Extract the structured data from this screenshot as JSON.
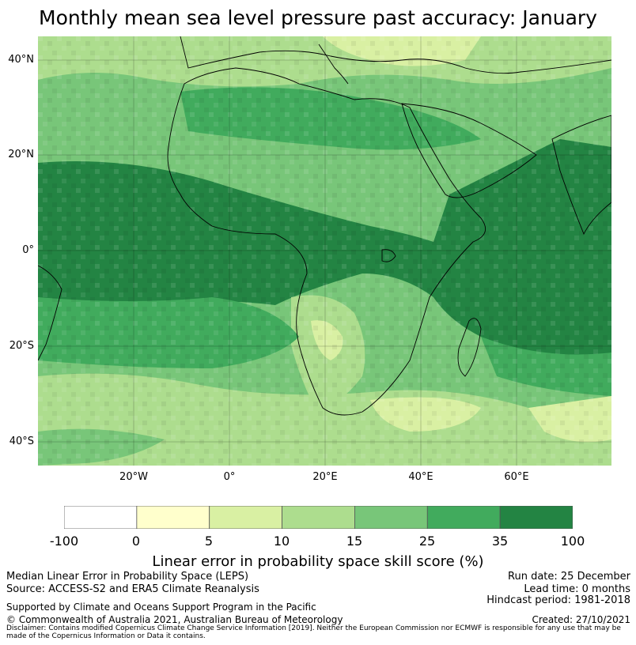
{
  "title": "Monthly mean sea level pressure past accuracy: January",
  "map": {
    "lat_labels": [
      "40°N",
      "20°N",
      "0°",
      "20°S",
      "40°S"
    ],
    "lon_labels": [
      "20°W",
      "0°",
      "20°E",
      "40°E",
      "60°E"
    ],
    "extent": {
      "lon_min": -40,
      "lon_max": 80,
      "lat_min": -45,
      "lat_max": 45
    }
  },
  "colorbar": {
    "ticks": [
      "-100",
      "0",
      "5",
      "10",
      "15",
      "25",
      "35",
      "100"
    ],
    "colors": [
      "#ffffff",
      "#ffffcc",
      "#d9f0a3",
      "#addd8e",
      "#78c679",
      "#41ab5d",
      "#238443"
    ],
    "label": "Linear error in probability space skill score (%)"
  },
  "footer": {
    "left1": "Median Linear Error in Probability Space (LEPS)",
    "left2": "Source: ACCESS-S2 and ERA5 Climate Reanalysis",
    "support": "Supported by Climate and Oceans Support Program in the Pacific",
    "copyright": "© Commonwealth of Australia 2021, Australian Bureau of Meteorology",
    "run_date": "Run date: 25 December",
    "lead_time": "Lead time: 0 months",
    "hindcast": "Hindcast period: 1981-2018",
    "created": "Created: 27/10/2021",
    "disclaimer": "Disclaimer: Contains modified Copernicus Climate Change Service Information [2019]. Neither the European Commission nor ECMWF is responsible for any use that may be made of the Copernicus Information or Data it contains."
  }
}
